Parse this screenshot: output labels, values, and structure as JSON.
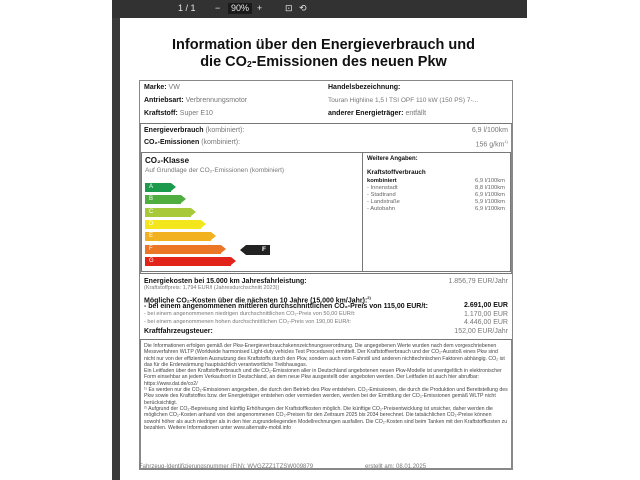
{
  "toolbar": {
    "page": "1 / 1",
    "zoom_out": "−",
    "zoom": "90%",
    "zoom_in": "+"
  },
  "title": {
    "line1": "Information über den Energieverbrauch und",
    "line2a": "die CO",
    "line2sub": "2",
    "line2b": "-Emissionen des neuen Pkw"
  },
  "vehicle": {
    "marke_label": "Marke:",
    "marke": "VW",
    "antrieb_label": "Antriebsart:",
    "antrieb": "Verbrennungsmotor",
    "kraftstoff_label": "Kraftstoff:",
    "kraftstoff": "Super E10",
    "handel_label": "Handelsbezeichnung:",
    "handel": "Touran Highline 1,5 l TSI OPF 110 kW (150 PS) 7-...",
    "anderer_label": "anderer Energieträger:",
    "anderer": "entfällt"
  },
  "energy": {
    "verbrauch_label": "Energieverbrauch",
    "kombiniert": "(kombiniert):",
    "verbrauch": "6,9 l/100km",
    "co2_label": "CO₂-Emissionen",
    "co2": "156 g/km",
    "co2_note": "1)"
  },
  "co2class": {
    "title": "CO₂-Klasse",
    "subtitle": "Auf Grundlage der CO₂-Emissionen (kombiniert)",
    "classes": [
      "A",
      "B",
      "C",
      "D",
      "E",
      "F",
      "G"
    ],
    "colors": [
      "#1a9a4a",
      "#4fae3f",
      "#a7c93a",
      "#f4e61c",
      "#f2b21f",
      "#ea7626",
      "#e2231a"
    ],
    "current": "F"
  },
  "weitere": {
    "title": "Weitere Angaben:",
    "kv": "Kraftstoffverbrauch",
    "rows": [
      {
        "label": "kombiniert",
        "value": "6,9 l/100km"
      },
      {
        "label": "- Innenstadt",
        "value": "8,8 l/100km"
      },
      {
        "label": "- Stadtrand",
        "value": "6,9 l/100km"
      },
      {
        "label": "- Landstraße",
        "value": "5,9 l/100km"
      },
      {
        "label": "- Autobahn",
        "value": "6,9 l/100km"
      }
    ]
  },
  "costs": {
    "energie_label": "Energiekosten bei 15.000 km Jahresfahrleistung:",
    "energie": "1.856,79 EUR/Jahr",
    "preis": "(Kraftstoffpreis: 1,794 EUR/l (Jahresdurchschnitt 2023))",
    "co2_title": "Mögliche CO₂-Kosten über die nächsten 10 Jahre (15.000 km/Jahr):",
    "co2_title_note": "2)",
    "mittel_label": "- bei einem angenommenen mittleren durchschnittlichen CO₂-Preis von  115,00 EUR/t:",
    "mittel": "2.691,00 EUR",
    "niedrig_label": "- bei einem angenommenen niedrigen durchschnittlichen CO₂-Preis von  50,00 EUR/t:",
    "niedrig": "1.170,00 EUR",
    "hoch_label": "- bei einem angenommenen hohen durchschnittlichen CO₂-Preis von  190,00 EUR/t:",
    "hoch": "4.446,00 EUR",
    "steuer_label": "Kraftfahrzeugsteuer:",
    "steuer": "152,00 EUR/Jahr"
  },
  "notes": {
    "p1": "Die Informationen erfolgen gemäß der Pkw-Energieverbrauchskennzeichnungsverordnung. Die angegebenen Werte wurden nach dem vorgeschriebenen Messverfahren WLTP (Worldwide harmonised Light-duty vehicles Test Procedures) ermittelt. Der Kraftstoffverbrauch und der CO₂-Ausstoß eines Pkw sind nicht nur von der effizienten Ausnutzung des Kraftstoffs durch den Pkw, sondern auch vom Fahrstil und anderen nichttechnischen Faktoren abhängig. CO₂ ist das für die Erderwärmung hauptsächlich verantwortliche Treibhausgas.",
    "p2": "Ein Leitfaden über den Kraftstoffverbrauch und die CO₂-Emissionen aller in Deutschland angebotenen neuen Pkw-Modelle ist unentgeltlich in elektronischer Form einsehbar an jedem Verkaufsort in Deutschland, an dem neue Pkw ausgestellt oder angeboten werden. Der Leitfaden ist auch hier abrufbar: https://www.dat.de/co2/",
    "p3": "¹⁾ Es werden nur die CO₂-Emissionen angegeben, die durch den Betrieb des Pkw entstehen. CO₂-Emissionen, die durch die Produktion und Bereitstellung des Pkw sowie des Kraftstoffes bzw. der Energieträger entstehen oder vermieden werden, werden bei der Ermittlung der CO₂-Emissionen gemäß WLTP nicht berücksichtigt.",
    "p4": "²⁾ Aufgrund der CO₂-Bepreisung sind künftig Erhöhungen der Kraftstoffkosten möglich. Die künftige CO₂-Preisentwicklung ist unsicher, daher werden die möglichen CO₂-Kosten anhand von drei angenommenen CO₂-Preisen für den Zeitraum 2025 bis 2034 berechnet. Die tatsächlichen CO₂-Preise können sowohl höher als auch niedriger als in den hier zugrundeliegenden Modellrechnungen ausfallen. Die CO₂-Kosten sind beim Tanken mit den Kraftstoffkosten zu bezahlen. Weitere Informationen unter www.alternativ-mobil.info"
  },
  "footer": {
    "fin": "Fahrzeug-Identifizierungsnummer (FIN): WVGZZZ1TZSW009879",
    "date": "erstellt am: 08.01.2025"
  }
}
